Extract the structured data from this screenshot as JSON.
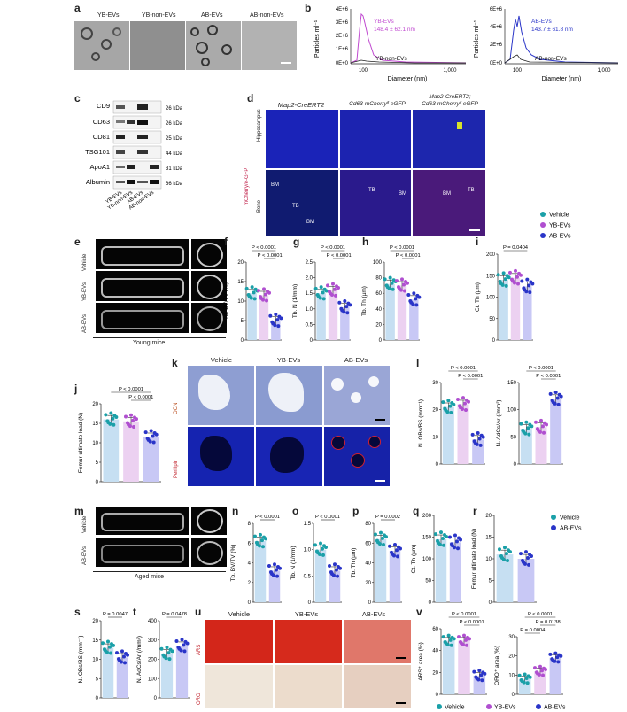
{
  "colors": {
    "vehicle": "#1aa0a8",
    "yb": "#b04fd0",
    "ab": "#2a35c8",
    "vehicle_bar": "#c6dff2",
    "yb_bar": "#ecd1f1",
    "ab_bar": "#c8c8f5"
  },
  "panel_letters": {
    "a": "a",
    "b": "b",
    "c": "c",
    "d": "d",
    "e": "e",
    "f": "f",
    "g": "g",
    "h": "h",
    "i": "i",
    "j": "j",
    "k": "k",
    "l": "l",
    "m": "m",
    "n": "n",
    "o": "o",
    "p": "p",
    "q": "q",
    "r": "r",
    "s": "s",
    "t": "t",
    "u": "u",
    "v": "v"
  },
  "panel_a": {
    "labels": [
      "YB-EVs",
      "YB-non-EVs",
      "AB-EVs",
      "AB-non-EVs"
    ]
  },
  "panel_b": {
    "left": {
      "ylabel": "Particles ml⁻¹",
      "xlabel": "Diameter (nm)",
      "yticks": [
        "4E+6",
        "3E+6",
        "2E+6",
        "1E+6",
        "0E+0"
      ],
      "xticks": [
        "100",
        "1,000"
      ],
      "ev_label": "YB-EVs",
      "ev_stat": "148.4 ± 62.1 nm",
      "non_label": "YB-non-EVs"
    },
    "right": {
      "ylabel": "Particles ml⁻¹",
      "xlabel": "Diameter (nm)",
      "yticks": [
        "6E+6",
        "4E+6",
        "2E+6",
        "0E+0"
      ],
      "xticks": [
        "100",
        "1,000"
      ],
      "ev_label": "AB-EVs",
      "ev_stat": "143.7 ± 61.8 nm",
      "non_label": "AB-non-EVs"
    }
  },
  "panel_c": {
    "rows": [
      {
        "name": "CD9",
        "kda": "26 kDa"
      },
      {
        "name": "CD63",
        "kda": "26 kDa"
      },
      {
        "name": "CD81",
        "kda": "25 kDa"
      },
      {
        "name": "TSG101",
        "kda": "44 kDa"
      },
      {
        "name": "ApoA1",
        "kda": "31 kDa"
      },
      {
        "name": "Albumin",
        "kda": "66 kDa"
      }
    ],
    "lanes": [
      "YB-EVs",
      "YB-non-EVs",
      "AB-EVs",
      "AB-non-EVs"
    ]
  },
  "panel_d": {
    "headers": [
      "Map2-CreERT2",
      "Cd63-mCherryᶠˡ-eGFP",
      "Map2-CreERT2;",
      "Cd63-mCherryᶠˡ-eGFP"
    ],
    "side_label": "mCherry/e-GFP",
    "row_labels": [
      "Hippocampus",
      "Bone"
    ],
    "region_labels": [
      "BM",
      "TB",
      "BM",
      "TB",
      "BM",
      "TB",
      "BM",
      "TB"
    ]
  },
  "legend_top": [
    "Vehicle",
    "YB-EVs",
    "AB-EVs"
  ],
  "panel_e": {
    "row_labels": [
      "Vehicle",
      "YB-EVs",
      "AB-EVs"
    ],
    "caption": "Young mice"
  },
  "panel_k": {
    "headers": [
      "Vehicle",
      "YB-EVs",
      "AB-EVs"
    ],
    "row_labels": [
      "OCN",
      "Perilipin"
    ]
  },
  "panel_m": {
    "row_labels": [
      "Vehicle",
      "AB-EVs"
    ],
    "caption": "Aged mice"
  },
  "legend_mid": [
    "Vehicle",
    "AB-EVs"
  ],
  "panel_u": {
    "headers": [
      "Vehicle",
      "YB-EVs",
      "AB-EVs"
    ],
    "row_labels": [
      "ARS",
      "ORO"
    ]
  },
  "legend_bottom": [
    "Vehicle",
    "YB-EVs",
    "AB-EVs"
  ],
  "chart_data": [
    {
      "id": "f",
      "type": "bar",
      "ylabel": "Tb. BV/TV (%)",
      "ylim": [
        0,
        20
      ],
      "yticks": [
        "0",
        "5",
        "10",
        "15",
        "20"
      ],
      "categories": [
        "Vehicle",
        "YB-EVs",
        "AB-EVs"
      ],
      "values": [
        12,
        11.5,
        5
      ],
      "pvalues": [
        "P < 0.0001",
        "P < 0.0001"
      ]
    },
    {
      "id": "g",
      "type": "bar",
      "ylabel": "Tb. N (1/mm)",
      "ylim": [
        0,
        2.5
      ],
      "yticks": [
        "0",
        "0.5",
        "1.0",
        "1.5",
        "2.0",
        "2.5"
      ],
      "categories": [
        "Vehicle",
        "YB-EVs",
        "AB-EVs"
      ],
      "values": [
        1.5,
        1.6,
        1.05
      ],
      "pvalues": [
        "P < 0.0001",
        "P < 0.0001"
      ]
    },
    {
      "id": "h",
      "type": "bar",
      "ylabel": "Tb. Th (µm)",
      "ylim": [
        0,
        100
      ],
      "yticks": [
        "0",
        "20",
        "40",
        "60",
        "80",
        "100"
      ],
      "categories": [
        "Vehicle",
        "YB-EVs",
        "AB-EVs"
      ],
      "values": [
        72,
        70,
        52
      ],
      "pvalues": [
        "P < 0.0001",
        "P < 0.0001"
      ]
    },
    {
      "id": "i",
      "type": "bar",
      "ylabel": "Ct. Th (µm)",
      "ylim": [
        0,
        200
      ],
      "yticks": [
        "0",
        "50",
        "100",
        "150",
        "200"
      ],
      "categories": [
        "Vehicle",
        "YB-EVs",
        "AB-EVs"
      ],
      "values": [
        140,
        145,
        125
      ],
      "pvalues": [
        "P = 0.0404"
      ]
    },
    {
      "id": "j",
      "type": "bar",
      "ylabel": "Femur ultimate load (N)",
      "ylim": [
        0,
        20
      ],
      "yticks": [
        "0",
        "5",
        "10",
        "15",
        "20"
      ],
      "categories": [
        "Vehicle",
        "YB-EVs",
        "AB-EVs"
      ],
      "values": [
        16,
        15.5,
        11.5
      ],
      "pvalues": [
        "P < 0.0001",
        "P < 0.0001"
      ]
    },
    {
      "id": "l1",
      "type": "bar",
      "ylabel": "N. OBs/BS (mm⁻¹)",
      "ylim": [
        0,
        30
      ],
      "yticks": [
        "0",
        "10",
        "20",
        "30"
      ],
      "categories": [
        "Vehicle",
        "YB-EVs",
        "AB-EVs"
      ],
      "values": [
        21,
        22,
        9
      ],
      "pvalues": [
        "P < 0.0001",
        "P < 0.0001"
      ]
    },
    {
      "id": "l2",
      "type": "bar",
      "ylabel": "N. AdCs/Ar (/mm²)",
      "ylim": [
        0,
        150
      ],
      "yticks": [
        "0",
        "50",
        "100",
        "150"
      ],
      "categories": [
        "Vehicle",
        "YB-EVs",
        "AB-EVs"
      ],
      "values": [
        65,
        68,
        120
      ],
      "pvalues": [
        "P < 0.0001",
        "P < 0.0001"
      ]
    },
    {
      "id": "n",
      "type": "bar",
      "ylabel": "Tb. BV/TV (%)",
      "ylim": [
        0,
        8
      ],
      "yticks": [
        "0",
        "2",
        "4",
        "6",
        "8"
      ],
      "categories": [
        "Vehicle",
        "AB-EVs"
      ],
      "values": [
        6.2,
        3.2
      ],
      "pvalues": [
        "P < 0.0001"
      ]
    },
    {
      "id": "o",
      "type": "bar",
      "ylabel": "Tb. N (1/mm)",
      "ylim": [
        0,
        1.5
      ],
      "yticks": [
        "0",
        "0.5",
        "1.0",
        "1.5"
      ],
      "categories": [
        "Vehicle",
        "AB-EVs"
      ],
      "values": [
        1.0,
        0.6
      ],
      "pvalues": [
        "P < 0.0001"
      ]
    },
    {
      "id": "p",
      "type": "bar",
      "ylabel": "Tb. Th (µm)",
      "ylim": [
        0,
        80
      ],
      "yticks": [
        "0",
        "20",
        "40",
        "60",
        "80"
      ],
      "categories": [
        "Vehicle",
        "AB-EVs"
      ],
      "values": [
        64,
        52
      ],
      "pvalues": [
        "P = 0.0002"
      ]
    },
    {
      "id": "q",
      "type": "bar",
      "ylabel": "Ct. Th (µm)",
      "ylim": [
        0,
        200
      ],
      "yticks": [
        "0",
        "50",
        "100",
        "150",
        "200"
      ],
      "categories": [
        "Vehicle",
        "AB-EVs"
      ],
      "values": [
        145,
        138
      ],
      "pvalues": []
    },
    {
      "id": "r",
      "type": "bar",
      "ylabel": "Femur ultimate load (N)",
      "ylim": [
        0,
        20
      ],
      "yticks": [
        "0",
        "5",
        "10",
        "15",
        "20"
      ],
      "categories": [
        "Vehicle",
        "AB-EVs"
      ],
      "values": [
        11,
        10
      ],
      "pvalues": []
    },
    {
      "id": "s",
      "type": "bar",
      "ylabel": "N. OBs/BS (mm⁻¹)",
      "ylim": [
        0,
        20
      ],
      "yticks": [
        "0",
        "5",
        "10",
        "15",
        "20"
      ],
      "categories": [
        "Vehicle",
        "AB-EVs"
      ],
      "values": [
        13,
        10.5
      ],
      "pvalues": [
        "P = 0.0047"
      ]
    },
    {
      "id": "t",
      "type": "bar",
      "ylabel": "N. AdCs/Ar (/mm²)",
      "ylim": [
        0,
        400
      ],
      "yticks": [
        "0",
        "100",
        "200",
        "300",
        "400"
      ],
      "categories": [
        "Vehicle",
        "AB-EVs"
      ],
      "values": [
        230,
        270
      ],
      "pvalues": [
        "P = 0.0478"
      ]
    },
    {
      "id": "v1",
      "type": "bar",
      "ylabel": "ARS⁺ area (%)",
      "ylim": [
        0,
        60
      ],
      "yticks": [
        "0",
        "20",
        "40",
        "60"
      ],
      "categories": [
        "Vehicle",
        "YB-EVs",
        "AB-EVs"
      ],
      "values": [
        49,
        49,
        17
      ],
      "pvalues": [
        "P < 0.0001",
        "P < 0.0001"
      ]
    },
    {
      "id": "v2",
      "type": "bar",
      "ylabel": "ORO⁺ area (%)",
      "ylim": [
        0,
        30
      ],
      "yticks": [
        "0",
        "10",
        "20",
        "30"
      ],
      "categories": [
        "Vehicle",
        "YB-EVs",
        "AB-EVs"
      ],
      "values": [
        8,
        12,
        19
      ],
      "pvalues": [
        "P < 0.0001",
        "P = 0.0138",
        "P = 0.0004"
      ]
    }
  ]
}
